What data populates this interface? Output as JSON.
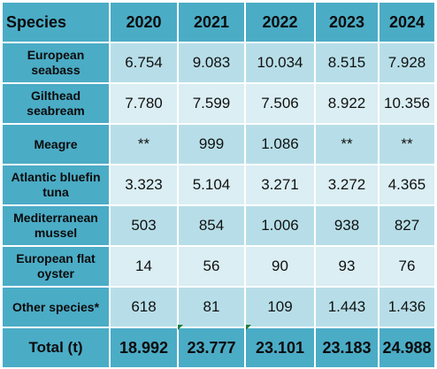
{
  "header": {
    "species": "Species",
    "years": [
      "2020",
      "2021",
      "2022",
      "2023",
      "2024"
    ]
  },
  "rows": [
    {
      "label": "European seabass",
      "values": [
        "6.754",
        "9.083",
        "10.034",
        "8.515",
        "7.928"
      ]
    },
    {
      "label": "Gilthead seabream",
      "values": [
        "7.780",
        "7.599",
        "7.506",
        "8.922",
        "10.356"
      ]
    },
    {
      "label": "Meagre",
      "values": [
        "**",
        "999",
        "1.086",
        "**",
        "**"
      ]
    },
    {
      "label": "Atlantic bluefin tuna",
      "values": [
        "3.323",
        "5.104",
        "3.271",
        "3.272",
        "4.365"
      ]
    },
    {
      "label": "Mediterranean mussel",
      "values": [
        "503",
        "854",
        "1.006",
        "938",
        "827"
      ]
    },
    {
      "label": "European flat oyster",
      "values": [
        "14",
        "56",
        "90",
        "93",
        "76"
      ]
    },
    {
      "label": "Other species*",
      "values": [
        "618",
        "81",
        "109",
        "1.443",
        "1.436"
      ]
    }
  ],
  "total": {
    "label": "Total (t)",
    "values": [
      "18.992",
      "23.777",
      "23.101",
      "23.183",
      "24.988"
    ]
  },
  "colors": {
    "header_bg": "#4bacc6",
    "row_dark": "#b7dee8",
    "row_light": "#daeef3",
    "cell_marker": "#1f7f3b"
  }
}
